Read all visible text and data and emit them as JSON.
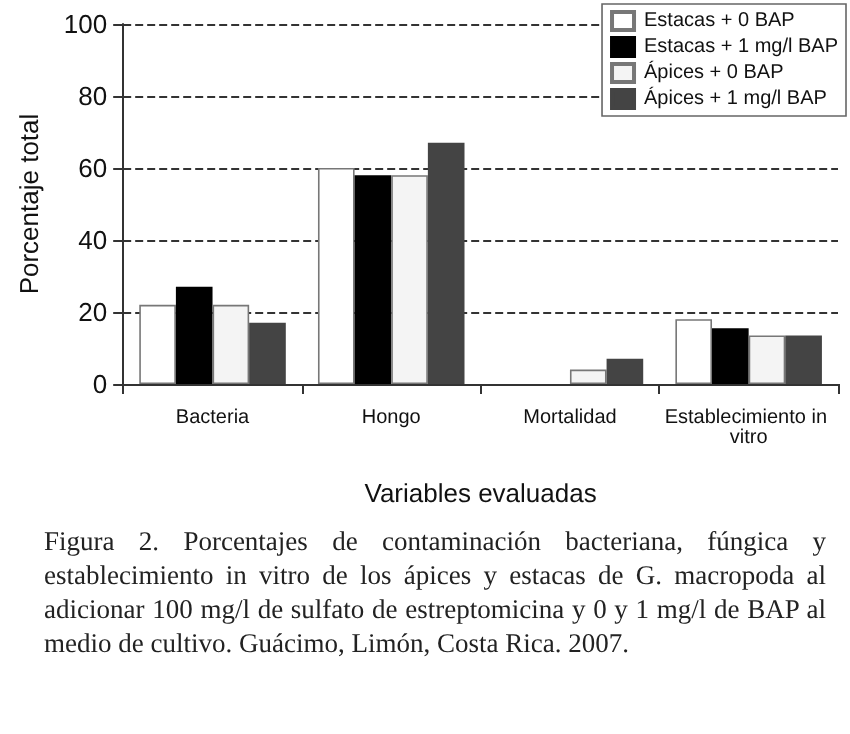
{
  "chart_data": {
    "type": "bar",
    "xlabel": "Variables evaluadas",
    "ylabel": "Porcentaje total",
    "categories": [
      "Bacteria",
      "Hongo",
      "Mortalidad",
      "Establecimiento in vitro"
    ],
    "series": [
      {
        "name": "Estacas + 0 BAP",
        "color": "#ffffff",
        "values": [
          22,
          60,
          0,
          18
        ]
      },
      {
        "name": "Estacas + 1 mg/l BAP",
        "color": "#000000",
        "values": [
          27,
          58,
          0,
          15.5
        ]
      },
      {
        "name": "Ápices + 0 BAP",
        "color": "#f4f4f4",
        "values": [
          22,
          58,
          4,
          13.5
        ]
      },
      {
        "name": "Ápices + 1 mg/l BAP",
        "color": "#444444",
        "values": [
          17,
          67,
          7,
          13.5
        ]
      }
    ],
    "ylim": [
      0,
      100
    ],
    "yticks": [
      0,
      20,
      40,
      60,
      80,
      100
    ],
    "grid": "y",
    "legend": "top right",
    "annotations": [
      "Figura 2. Porcentajes de contaminación bacteriana, fúngica y establecimiento in vitro de los ápices y estacas de G. macropoda al adicionar 100 mg/l de sulfato de estreptomicina y 0 y 1 mg/l de BAP al medio de cultivo. Guácimo, Limón, Costa Rica. 2007."
    ]
  }
}
